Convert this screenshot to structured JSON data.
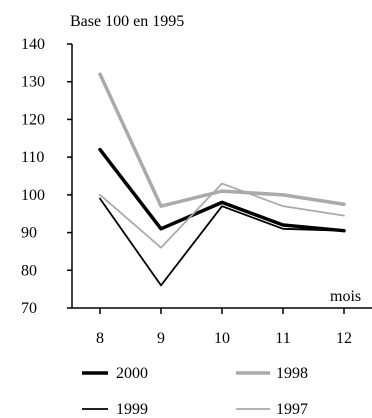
{
  "chart_data": {
    "type": "line",
    "title": "Base 100 en 1995",
    "xlabel": "mois",
    "ylabel": "",
    "categories": [
      "8",
      "9",
      "10",
      "11",
      "12"
    ],
    "ylim": [
      70,
      140
    ],
    "yticks": [
      70,
      80,
      90,
      100,
      110,
      120,
      130,
      140
    ],
    "grid": false,
    "legend_position": "bottom",
    "series": [
      {
        "name": "2000",
        "values": [
          112,
          91,
          98,
          92,
          90.5
        ],
        "color": "#000000",
        "style": "thick"
      },
      {
        "name": "1998",
        "values": [
          132,
          97,
          101,
          100,
          97.5
        ],
        "color": "#aaaaaa",
        "style": "thick"
      },
      {
        "name": "1999",
        "values": [
          99,
          76,
          97,
          91,
          90.5
        ],
        "color": "#000000",
        "style": "thin"
      },
      {
        "name": "1997",
        "values": [
          100,
          86,
          103,
          97,
          94.5
        ],
        "color": "#aaaaaa",
        "style": "thin"
      }
    ]
  }
}
